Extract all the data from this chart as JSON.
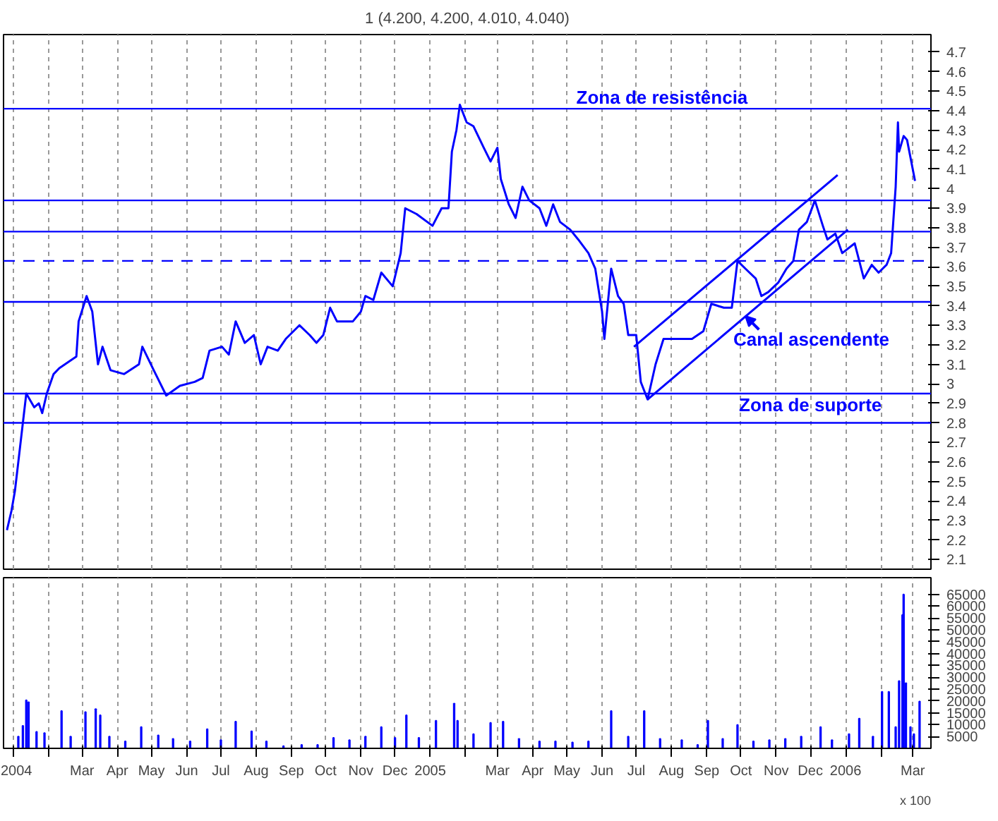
{
  "chart_data": [
    {
      "type": "line",
      "title": "1 (4.200, 4.200, 4.010, 4.040)",
      "x": [
        "2003-12-26",
        "2003-12-30",
        "2004-01-02",
        "2004-01-05",
        "2004-01-08",
        "2004-01-12",
        "2004-01-14",
        "2004-01-19",
        "2004-01-23",
        "2004-01-26",
        "2004-01-30",
        "2004-02-05",
        "2004-02-10",
        "2004-02-25",
        "2004-02-27",
        "2004-03-05",
        "2004-03-10",
        "2004-03-15",
        "2004-03-19",
        "2004-03-26",
        "2004-04-07",
        "2004-04-20",
        "2004-04-23",
        "2004-05-03",
        "2004-05-14",
        "2004-05-26",
        "2004-06-08",
        "2004-06-15",
        "2004-06-21",
        "2004-07-02",
        "2004-07-08",
        "2004-07-14",
        "2004-07-22",
        "2004-07-30",
        "2004-08-05",
        "2004-08-11",
        "2004-08-20",
        "2004-08-27",
        "2004-09-08",
        "2004-09-17",
        "2004-09-23",
        "2004-09-29",
        "2004-10-05",
        "2004-10-11",
        "2004-10-25",
        "2004-11-01",
        "2004-11-05",
        "2004-11-12",
        "2004-11-19",
        "2004-11-29",
        "2004-12-06",
        "2004-12-10",
        "2004-12-20",
        "2005-01-03",
        "2005-01-11",
        "2005-01-17",
        "2005-01-20",
        "2005-01-24",
        "2005-01-27",
        "2005-02-02",
        "2005-02-08",
        "2005-02-17",
        "2005-02-23",
        "2005-03-01",
        "2005-03-04",
        "2005-03-11",
        "2005-03-17",
        "2005-03-23",
        "2005-03-29",
        "2005-04-07",
        "2005-04-13",
        "2005-04-19",
        "2005-04-25",
        "2005-05-04",
        "2005-05-11",
        "2005-05-20",
        "2005-05-26",
        "2005-06-01",
        "2005-06-03",
        "2005-06-09",
        "2005-06-15",
        "2005-06-20",
        "2005-06-24",
        "2005-07-01",
        "2005-07-05",
        "2005-07-11",
        "2005-07-18",
        "2005-07-25",
        "2005-08-04",
        "2005-08-19",
        "2005-08-29",
        "2005-09-05",
        "2005-09-16",
        "2005-09-23",
        "2005-09-28",
        "2005-10-05",
        "2005-10-14",
        "2005-10-19",
        "2005-10-25",
        "2005-11-03",
        "2005-11-10",
        "2005-11-16",
        "2005-11-21",
        "2005-11-28",
        "2005-12-05",
        "2005-12-12",
        "2005-12-16",
        "2005-12-23",
        "2005-12-29",
        "2006-01-09",
        "2006-01-17",
        "2006-01-24",
        "2006-01-30",
        "2006-02-06",
        "2006-02-10",
        "2006-02-14",
        "2006-02-16",
        "2006-02-17",
        "2006-02-21",
        "2006-02-24",
        "2006-02-28",
        "2006-03-03"
      ],
      "series": [
        {
          "color": "#0000ff",
          "values": [
            2.25,
            2.35,
            2.45,
            2.6,
            2.75,
            2.95,
            2.93,
            2.88,
            2.9,
            2.85,
            2.95,
            3.05,
            3.08,
            3.14,
            3.32,
            3.45,
            3.37,
            3.1,
            3.19,
            3.07,
            3.05,
            3.1,
            3.19,
            3.07,
            2.94,
            2.99,
            3.01,
            3.03,
            3.17,
            3.19,
            3.15,
            3.32,
            3.21,
            3.25,
            3.1,
            3.19,
            3.17,
            3.23,
            3.3,
            3.25,
            3.21,
            3.25,
            3.39,
            3.32,
            3.32,
            3.37,
            3.45,
            3.43,
            3.57,
            3.5,
            3.67,
            3.9,
            3.87,
            3.81,
            3.9,
            3.9,
            4.19,
            4.3,
            4.43,
            4.34,
            4.32,
            4.21,
            4.14,
            4.21,
            4.05,
            3.92,
            3.85,
            4.01,
            3.94,
            3.9,
            3.81,
            3.92,
            3.83,
            3.79,
            3.74,
            3.67,
            3.59,
            3.37,
            3.23,
            3.59,
            3.45,
            3.41,
            3.25,
            3.25,
            3.01,
            2.92,
            3.1,
            3.23,
            3.23,
            3.23,
            3.27,
            3.41,
            3.39,
            3.39,
            3.63,
            3.59,
            3.54,
            3.45,
            3.47,
            3.52,
            3.59,
            3.63,
            3.79,
            3.83,
            3.94,
            3.81,
            3.74,
            3.77,
            3.67,
            3.72,
            3.54,
            3.61,
            3.57,
            3.61,
            3.67,
            4.01,
            4.34,
            4.19,
            4.27,
            4.25,
            4.13,
            4.04
          ]
        },
        {
          "type": "line",
          "color": "#0000ff",
          "x": [
            "2005-06-29",
            "2005-12-25"
          ],
          "values": [
            3.19,
            4.07
          ]
        },
        {
          "type": "line",
          "color": "#0000ff",
          "x": [
            "2005-07-11",
            "2006-01-03"
          ],
          "values": [
            2.92,
            3.79
          ]
        }
      ],
      "xlim": [
        "2003-12-23",
        "2006-03-17"
      ],
      "xticks": [
        {
          "value": "2004-01-01",
          "label": null
        },
        {
          "value": "2004-02-01",
          "label": null
        },
        {
          "value": "2004-03-01",
          "label": null
        },
        {
          "value": "2004-04-01",
          "label": null
        },
        {
          "value": "2004-05-01",
          "label": null
        },
        {
          "value": "2004-06-01",
          "label": null
        },
        {
          "value": "2004-07-01",
          "label": null
        },
        {
          "value": "2004-08-01",
          "label": null
        },
        {
          "value": "2004-09-01",
          "label": null
        },
        {
          "value": "2004-10-01",
          "label": null
        },
        {
          "value": "2004-11-01",
          "label": null
        },
        {
          "value": "2004-12-01",
          "label": null
        },
        {
          "value": "2005-01-01",
          "label": null
        },
        {
          "value": "2005-02-01",
          "label": null
        },
        {
          "value": "2005-03-01",
          "label": null
        },
        {
          "value": "2005-04-01",
          "label": null
        },
        {
          "value": "2005-05-01",
          "label": null
        },
        {
          "value": "2005-06-01",
          "label": null
        },
        {
          "value": "2005-07-01",
          "label": null
        },
        {
          "value": "2005-08-01",
          "label": null
        },
        {
          "value": "2005-09-01",
          "label": null
        },
        {
          "value": "2005-10-01",
          "label": null
        },
        {
          "value": "2005-11-01",
          "label": null
        },
        {
          "value": "2005-12-01",
          "label": null
        },
        {
          "value": "2006-01-01",
          "label": null
        },
        {
          "value": "2006-02-01",
          "label": null
        },
        {
          "value": "2006-03-01",
          "label": null
        }
      ],
      "ylim": [
        2.05,
        4.79
      ],
      "yticks": [
        2.1,
        2.2,
        2.3,
        2.4,
        2.5,
        2.6,
        2.7,
        2.8,
        2.9,
        3.0,
        3.1,
        3.2,
        3.3,
        3.4,
        3.5,
        3.6,
        3.7,
        3.8,
        3.9,
        4.0,
        4.1,
        4.2,
        4.3,
        4.4,
        4.5,
        4.6,
        4.7
      ],
      "ref_lines": [
        {
          "axis": "y",
          "value": 4.41,
          "color": "#0000ff"
        },
        {
          "axis": "y",
          "value": 3.94,
          "color": "#0000ff"
        },
        {
          "axis": "y",
          "value": 3.78,
          "color": "#0000ff"
        },
        {
          "axis": "y",
          "value": 3.63,
          "color": "#0000ff",
          "line_style": "dashed"
        },
        {
          "axis": "y",
          "value": 3.42,
          "color": "#0000ff"
        },
        {
          "axis": "y",
          "value": 2.95,
          "color": "#0000ff"
        },
        {
          "axis": "y",
          "value": 2.8,
          "color": "#0000ff"
        }
      ],
      "annotations": [
        "Zona de resistência",
        "Canal ascendente",
        "Zona de suporte"
      ],
      "grid": "x",
      "tick_labels": "y"
    },
    {
      "type": "bar",
      "x": [
        "2004-01-05",
        "2004-01-09",
        "2004-01-12",
        "2004-01-14",
        "2004-01-21",
        "2004-01-28",
        "2004-02-12",
        "2004-02-20",
        "2004-03-04",
        "2004-03-13",
        "2004-03-17",
        "2004-03-25",
        "2004-04-08",
        "2004-04-22",
        "2004-05-07",
        "2004-05-20",
        "2004-06-04",
        "2004-06-19",
        "2004-07-01",
        "2004-07-14",
        "2004-07-28",
        "2004-08-10",
        "2004-08-25",
        "2004-09-10",
        "2004-09-24",
        "2004-10-08",
        "2004-10-22",
        "2004-11-05",
        "2004-11-19",
        "2004-12-01",
        "2004-12-11",
        "2004-12-22",
        "2005-01-06",
        "2005-01-22",
        "2005-01-25",
        "2005-02-08",
        "2005-02-23",
        "2005-03-06",
        "2005-03-20",
        "2005-04-07",
        "2005-04-21",
        "2005-05-06",
        "2005-05-20",
        "2005-06-09",
        "2005-06-24",
        "2005-07-08",
        "2005-07-22",
        "2005-08-10",
        "2005-08-24",
        "2005-09-02",
        "2005-09-15",
        "2005-09-28",
        "2005-10-12",
        "2005-10-26",
        "2005-11-09",
        "2005-11-23",
        "2005-12-10",
        "2005-12-20",
        "2006-01-04",
        "2006-01-13",
        "2006-01-25",
        "2006-02-02",
        "2006-02-08",
        "2006-02-14",
        "2006-02-17",
        "2006-02-20",
        "2006-02-21",
        "2006-02-23",
        "2006-02-27",
        "2006-03-02",
        "2006-03-07"
      ],
      "series": [
        {
          "color": "#0000ff",
          "values": [
            5000,
            9500,
            20300,
            19500,
            7000,
            6500,
            15800,
            5000,
            15300,
            16600,
            14000,
            5000,
            3000,
            9000,
            5500,
            4000,
            3000,
            8100,
            3500,
            11300,
            7200,
            3000,
            1000,
            1500,
            1500,
            4500,
            3500,
            5000,
            9000,
            4500,
            14000,
            4500,
            11700,
            18900,
            11700,
            6000,
            10800,
            11300,
            4000,
            3000,
            3000,
            2500,
            3000,
            15800,
            5000,
            15800,
            4000,
            3500,
            1500,
            11700,
            4000,
            9900,
            3000,
            3500,
            4000,
            5000,
            9000,
            3500,
            6000,
            12600,
            5000,
            23900,
            23900,
            9000,
            28400,
            56300,
            64900,
            27500,
            9000,
            6000,
            19800
          ]
        }
      ],
      "xlim": [
        "2003-12-23",
        "2006-03-17"
      ],
      "xticks": [
        {
          "value": "2004-01-01",
          "label": "2004"
        },
        {
          "value": "2004-02-01",
          "label": null
        },
        {
          "value": "2004-03-01",
          "label": "Mar"
        },
        {
          "value": "2004-04-01",
          "label": "Apr"
        },
        {
          "value": "2004-05-01",
          "label": "May"
        },
        {
          "value": "2004-06-01",
          "label": "Jun"
        },
        {
          "value": "2004-07-01",
          "label": "Jul"
        },
        {
          "value": "2004-08-01",
          "label": "Aug"
        },
        {
          "value": "2004-09-01",
          "label": "Sep"
        },
        {
          "value": "2004-10-01",
          "label": "Oct"
        },
        {
          "value": "2004-11-01",
          "label": "Nov"
        },
        {
          "value": "2004-12-01",
          "label": "Dec"
        },
        {
          "value": "2005-01-01",
          "label": "2005"
        },
        {
          "value": "2005-02-01",
          "label": null
        },
        {
          "value": "2005-03-01",
          "label": "Mar"
        },
        {
          "value": "2005-04-01",
          "label": "Apr"
        },
        {
          "value": "2005-05-01",
          "label": "May"
        },
        {
          "value": "2005-06-01",
          "label": "Jun"
        },
        {
          "value": "2005-07-01",
          "label": "Jul"
        },
        {
          "value": "2005-08-01",
          "label": "Aug"
        },
        {
          "value": "2005-09-01",
          "label": "Sep"
        },
        {
          "value": "2005-10-01",
          "label": "Oct"
        },
        {
          "value": "2005-11-01",
          "label": "Nov"
        },
        {
          "value": "2005-12-01",
          "label": "Dec"
        },
        {
          "value": "2006-01-01",
          "label": "2006"
        },
        {
          "value": "2006-02-01",
          "label": null
        },
        {
          "value": "2006-03-01",
          "label": "Mar"
        }
      ],
      "ylim": [
        0,
        72000
      ],
      "yticks": [
        5000,
        10000,
        15000,
        20000,
        25000,
        30000,
        35000,
        40000,
        45000,
        50000,
        55000,
        60000,
        65000
      ],
      "annotations": [
        "x 100"
      ],
      "grid": "x"
    }
  ]
}
